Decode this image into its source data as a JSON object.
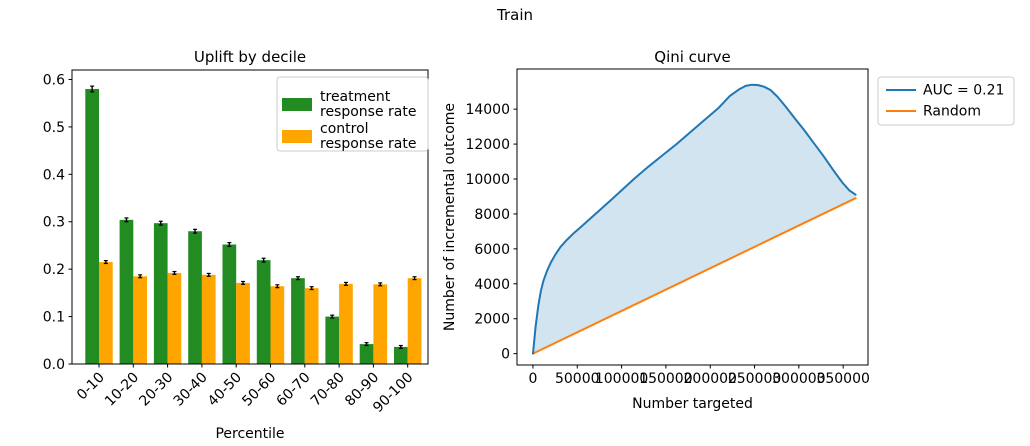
{
  "suptitle": "Train",
  "colors": {
    "treatment_bar": "#228B22",
    "control_bar": "#FFA500",
    "qini_line": "#1f77b4",
    "random_line": "#ff7f0e",
    "qini_fill": "rgba(31,119,180,0.2)",
    "axis": "#000000",
    "error_bar": "#000000",
    "legend_border": "#cccccc",
    "background": "#ffffff"
  },
  "chart_data": [
    {
      "type": "bar",
      "title": "Uplift by decile",
      "xlabel": "Percentile",
      "ylabel": "",
      "categories": [
        "0-10",
        "10-20",
        "20-30",
        "30-40",
        "40-50",
        "50-60",
        "60-70",
        "70-80",
        "80-90",
        "90-100"
      ],
      "series": [
        {
          "name": "treatment\nresponse rate",
          "color_key": "treatment_bar",
          "values": [
            0.58,
            0.304,
            0.297,
            0.28,
            0.252,
            0.219,
            0.181,
            0.1,
            0.042,
            0.036
          ],
          "errors": [
            0.006,
            0.004,
            0.004,
            0.004,
            0.004,
            0.004,
            0.003,
            0.003,
            0.003,
            0.003
          ]
        },
        {
          "name": "control\nresponse rate",
          "color_key": "control_bar",
          "values": [
            0.215,
            0.185,
            0.192,
            0.188,
            0.171,
            0.164,
            0.16,
            0.169,
            0.168,
            0.181
          ],
          "errors": [
            0.003,
            0.003,
            0.003,
            0.003,
            0.003,
            0.003,
            0.003,
            0.003,
            0.003,
            0.003
          ]
        }
      ],
      "ylim": [
        0,
        0.62
      ],
      "yticks": [
        0,
        0.1,
        0.2,
        0.3,
        0.4,
        0.5,
        0.6
      ],
      "ytick_labels": [
        "0.0",
        "0.1",
        "0.2",
        "0.3",
        "0.4",
        "0.5",
        "0.6"
      ],
      "grid": false,
      "legend_position": "upper right"
    },
    {
      "type": "line",
      "title": "Qini curve",
      "xlabel": "Number targeted",
      "ylabel": "Number of incremental outcome",
      "series": [
        {
          "name": "AUC = 0.21",
          "color_key": "qini_line",
          "fill_to_series": 1,
          "x": [
            0,
            3000,
            6000,
            9000,
            12000,
            16000,
            20000,
            25000,
            31000,
            38000,
            46000,
            55000,
            65000,
            76000,
            88000,
            101000,
            115000,
            130000,
            146000,
            162000,
            178000,
            194000,
            209000,
            222000,
            233000,
            240000,
            247000,
            254000,
            261000,
            268000,
            276000,
            285000,
            295000,
            306000,
            317000,
            328000,
            339000,
            349000,
            357000,
            364000
          ],
          "y": [
            0,
            1550,
            2750,
            3600,
            4200,
            4750,
            5200,
            5650,
            6100,
            6500,
            6900,
            7300,
            7750,
            8250,
            8800,
            9400,
            10050,
            10700,
            11350,
            12000,
            12700,
            13400,
            14050,
            14750,
            15150,
            15330,
            15400,
            15380,
            15280,
            15100,
            14700,
            14150,
            13500,
            12800,
            12050,
            11300,
            10500,
            9800,
            9350,
            9100
          ]
        },
        {
          "name": "Random",
          "color_key": "random_line",
          "x": [
            0,
            364000
          ],
          "y": [
            0,
            8900
          ]
        }
      ],
      "xlim": [
        -18000,
        378000
      ],
      "ylim": [
        -650,
        16300
      ],
      "xticks": [
        0,
        50000,
        100000,
        150000,
        200000,
        250000,
        300000,
        350000
      ],
      "xtick_labels": [
        "0",
        "50000",
        "100000",
        "150000",
        "200000",
        "250000",
        "300000",
        "350000"
      ],
      "yticks": [
        0,
        2000,
        4000,
        6000,
        8000,
        10000,
        12000,
        14000
      ],
      "ytick_labels": [
        "0",
        "2000",
        "4000",
        "6000",
        "8000",
        "10000",
        "12000",
        "14000"
      ],
      "grid": false,
      "legend_position": "outside upper right"
    }
  ]
}
